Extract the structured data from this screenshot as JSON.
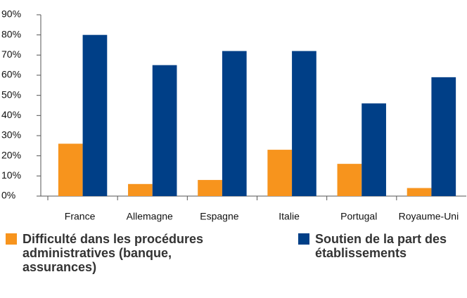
{
  "chart_data": {
    "type": "bar",
    "categories": [
      "France",
      "Allemagne",
      "Espagne",
      "Italie",
      "Portugal",
      "Royaume-Uni"
    ],
    "series": [
      {
        "name": "Difficulté dans les procédures administratives (banque, assurances)",
        "color": "#f7941d",
        "values": [
          26,
          6,
          8,
          23,
          16,
          4
        ]
      },
      {
        "name": "Soutien de la part des établissements",
        "color": "#003f87",
        "values": [
          80,
          65,
          72,
          72,
          46,
          59
        ]
      }
    ],
    "ylim": [
      0,
      90
    ],
    "yticks": [
      {
        "value": 0,
        "label": "0%"
      },
      {
        "value": 10,
        "label": "10%"
      },
      {
        "value": 20,
        "label": "20%"
      },
      {
        "value": 30,
        "label": "30%"
      },
      {
        "value": 40,
        "label": "40%"
      },
      {
        "value": 50,
        "label": "50%"
      },
      {
        "value": 60,
        "label": "60%"
      },
      {
        "value": 70,
        "label": "70%"
      },
      {
        "value": 80,
        "label": "80%"
      },
      {
        "value": 90,
        "label": "90%"
      }
    ],
    "legend": "bottom"
  }
}
